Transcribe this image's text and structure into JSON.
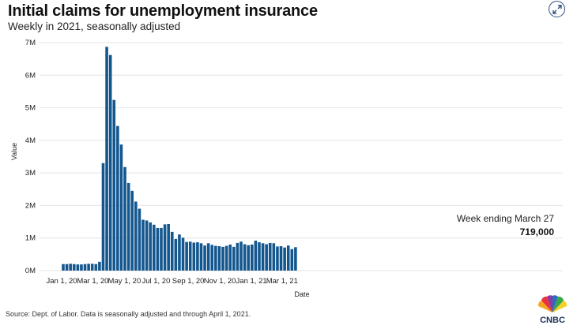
{
  "header": {
    "title": "Initial claims for unemployment insurance",
    "subtitle": "Weekly in 2021, seasonally adjusted"
  },
  "source_note": "Source: Dept. of Labor. Data is seasonally adjusted and through April 1, 2021.",
  "logo": {
    "text": "CNBC",
    "icon": "peacock-logo"
  },
  "expand_icon": "expand-arrows-icon",
  "callout": {
    "label": "Week ending March 27",
    "value": "719,000"
  },
  "colors": {
    "bar": "#14578f",
    "grid": "#e4e4e4",
    "text": "#222222"
  },
  "chart_data": {
    "type": "bar",
    "title": "Initial claims for unemployment insurance",
    "subtitle": "Weekly in 2021, seasonally adjusted",
    "xlabel": "Date",
    "ylabel": "Value",
    "ylim": [
      0,
      7000000
    ],
    "yticks": [
      {
        "value": 0,
        "label": "0M"
      },
      {
        "value": 1000000,
        "label": "1M"
      },
      {
        "value": 2000000,
        "label": "2M"
      },
      {
        "value": 3000000,
        "label": "3M"
      },
      {
        "value": 4000000,
        "label": "4M"
      },
      {
        "value": 5000000,
        "label": "5M"
      },
      {
        "value": 6000000,
        "label": "6M"
      },
      {
        "value": 7000000,
        "label": "7M"
      }
    ],
    "xticks": [
      "Jan 1, 20",
      "Mar 1, 20",
      "May 1, 20",
      "Jul 1, 20",
      "Sep 1, 20",
      "Nov 1, 20",
      "Jan 1, 21",
      "Mar 1, 21"
    ],
    "grid": true,
    "legend": "none",
    "categories": [
      "2020-01-04",
      "2020-01-11",
      "2020-01-18",
      "2020-01-25",
      "2020-02-01",
      "2020-02-08",
      "2020-02-15",
      "2020-02-22",
      "2020-02-29",
      "2020-03-07",
      "2020-03-14",
      "2020-03-21",
      "2020-03-28",
      "2020-04-04",
      "2020-04-11",
      "2020-04-18",
      "2020-04-25",
      "2020-05-02",
      "2020-05-09",
      "2020-05-16",
      "2020-05-23",
      "2020-05-30",
      "2020-06-06",
      "2020-06-13",
      "2020-06-20",
      "2020-06-27",
      "2020-07-04",
      "2020-07-11",
      "2020-07-18",
      "2020-07-25",
      "2020-08-01",
      "2020-08-08",
      "2020-08-15",
      "2020-08-22",
      "2020-08-29",
      "2020-09-05",
      "2020-09-12",
      "2020-09-19",
      "2020-09-26",
      "2020-10-03",
      "2020-10-10",
      "2020-10-17",
      "2020-10-24",
      "2020-10-31",
      "2020-11-07",
      "2020-11-14",
      "2020-11-21",
      "2020-11-28",
      "2020-12-05",
      "2020-12-12",
      "2020-12-19",
      "2020-12-26",
      "2021-01-02",
      "2021-01-09",
      "2021-01-16",
      "2021-01-23",
      "2021-01-30",
      "2021-02-06",
      "2021-02-13",
      "2021-02-20",
      "2021-02-27",
      "2021-03-06",
      "2021-03-13",
      "2021-03-20",
      "2021-03-27"
    ],
    "values": [
      200000,
      200000,
      210000,
      200000,
      190000,
      190000,
      200000,
      210000,
      210000,
      200000,
      270000,
      3300000,
      6870000,
      6620000,
      5240000,
      4440000,
      3870000,
      3180000,
      2690000,
      2450000,
      2120000,
      1900000,
      1560000,
      1540000,
      1480000,
      1410000,
      1310000,
      1310000,
      1420000,
      1430000,
      1190000,
      970000,
      1110000,
      1010000,
      880000,
      890000,
      860000,
      870000,
      840000,
      770000,
      840000,
      790000,
      760000,
      750000,
      730000,
      760000,
      800000,
      730000,
      850000,
      890000,
      810000,
      780000,
      800000,
      920000,
      870000,
      840000,
      810000,
      850000,
      840000,
      740000,
      750000,
      710000,
      770000,
      660000,
      719000
    ]
  }
}
